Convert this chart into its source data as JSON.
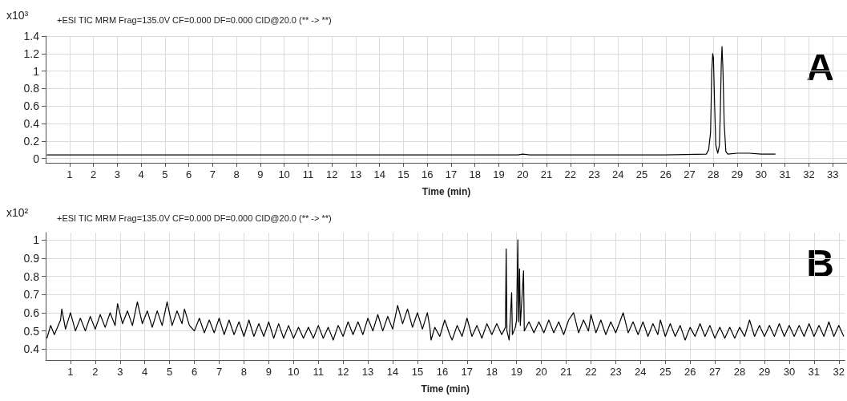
{
  "chart_data": [
    {
      "type": "line",
      "title": "+ESI TIC MRM Frag=135.0V CF=0.000 DF=0.000 CID@20.0 (** -> **)",
      "xlabel": "Time (min)",
      "ylabel": "x10³",
      "annotations": [
        "A"
      ],
      "xlim": [
        0,
        33.6
      ],
      "ylim": [
        -0.05,
        1.4
      ],
      "xticks": [
        1,
        2,
        3,
        4,
        5,
        6,
        7,
        8,
        9,
        10,
        11,
        12,
        13,
        14,
        15,
        16,
        17,
        18,
        19,
        20,
        21,
        22,
        23,
        24,
        25,
        26,
        27,
        28,
        29,
        30,
        31,
        32,
        33
      ],
      "yticks": [
        0,
        0.2,
        0.4,
        0.6,
        0.8,
        1,
        1.2,
        1.4
      ],
      "grid": true,
      "marker": "none",
      "line_style": "solid",
      "series": [
        {
          "color": "#000000",
          "x": [
            0.05,
            5,
            10,
            15,
            17,
            19.8,
            20,
            20.3,
            22,
            26,
            27.7,
            27.8,
            27.88,
            27.93,
            27.97,
            28.0,
            28.05,
            28.1,
            28.18,
            28.25,
            28.29,
            28.33,
            28.36,
            28.4,
            28.45,
            28.52,
            28.6,
            29,
            29.5,
            30,
            30.6
          ],
          "values": [
            0.04,
            0.04,
            0.04,
            0.04,
            0.04,
            0.04,
            0.05,
            0.04,
            0.04,
            0.04,
            0.05,
            0.1,
            0.3,
            1.0,
            1.2,
            1.15,
            0.6,
            0.15,
            0.06,
            0.15,
            0.55,
            1.1,
            1.28,
            1.0,
            0.4,
            0.08,
            0.05,
            0.06,
            0.06,
            0.05,
            0.05
          ]
        }
      ]
    },
    {
      "type": "line",
      "title": "+ESI TIC MRM Frag=135.0V CF=0.000 DF=0.000 CID@20.0 (** -> **)",
      "xlabel": "Time (min)",
      "ylabel": "x10²",
      "annotations": [
        "B"
      ],
      "xlim": [
        0,
        32.25
      ],
      "ylim": [
        0.34,
        1.04
      ],
      "xticks": [
        1,
        2,
        3,
        4,
        5,
        6,
        7,
        8,
        9,
        10,
        11,
        12,
        13,
        14,
        15,
        16,
        17,
        18,
        19,
        20,
        21,
        22,
        23,
        24,
        25,
        26,
        27,
        28,
        29,
        30,
        31,
        32
      ],
      "yticks": [
        0.4,
        0.5,
        0.6,
        0.7,
        0.8,
        0.9,
        1
      ],
      "grid": true,
      "marker": "none",
      "line_style": "solid",
      "series": [
        {
          "color": "#000000",
          "x": [
            0.05,
            0.2,
            0.35,
            0.6,
            0.65,
            0.8,
            1.0,
            1.2,
            1.4,
            1.6,
            1.8,
            2.0,
            2.2,
            2.4,
            2.6,
            2.8,
            2.9,
            3.1,
            3.3,
            3.5,
            3.7,
            3.9,
            4.1,
            4.3,
            4.5,
            4.7,
            4.9,
            5.1,
            5.3,
            5.5,
            5.6,
            5.8,
            6.0,
            6.2,
            6.4,
            6.6,
            6.8,
            7.0,
            7.2,
            7.4,
            7.6,
            7.8,
            8.0,
            8.2,
            8.4,
            8.6,
            8.8,
            9.0,
            9.2,
            9.4,
            9.6,
            9.8,
            10.0,
            10.2,
            10.4,
            10.6,
            10.8,
            11.0,
            11.2,
            11.4,
            11.6,
            11.8,
            12.0,
            12.2,
            12.4,
            12.6,
            12.8,
            13.0,
            13.2,
            13.4,
            13.6,
            13.8,
            14.0,
            14.2,
            14.4,
            14.6,
            14.8,
            15.0,
            15.2,
            15.4,
            15.5,
            15.55,
            15.7,
            15.9,
            16.1,
            16.3,
            16.4,
            16.6,
            16.8,
            17.0,
            17.2,
            17.4,
            17.6,
            17.8,
            18.0,
            18.2,
            18.4,
            18.55,
            18.58,
            18.61,
            18.7,
            18.8,
            18.83,
            18.95,
            19.0,
            19.05,
            19.08,
            19.12,
            19.15,
            19.28,
            19.31,
            19.5,
            19.7,
            19.9,
            20.1,
            20.3,
            20.5,
            20.7,
            20.9,
            21.1,
            21.3,
            21.5,
            21.7,
            21.9,
            22.0,
            22.2,
            22.4,
            22.6,
            22.8,
            23.0,
            23.3,
            23.5,
            23.7,
            23.9,
            24.1,
            24.3,
            24.5,
            24.7,
            24.8,
            25.0,
            25.2,
            25.4,
            25.6,
            25.8,
            26.0,
            26.2,
            26.4,
            26.6,
            26.8,
            27.0,
            27.2,
            27.4,
            27.6,
            27.8,
            28.0,
            28.2,
            28.4,
            28.6,
            28.8,
            29.0,
            29.2,
            29.4,
            29.6,
            29.8,
            30.0,
            30.2,
            30.4,
            30.6,
            30.8,
            31.0,
            31.2,
            31.4,
            31.6,
            31.8,
            32.0,
            32.2
          ],
          "values": [
            0.46,
            0.53,
            0.48,
            0.56,
            0.62,
            0.51,
            0.6,
            0.5,
            0.57,
            0.5,
            0.58,
            0.51,
            0.59,
            0.52,
            0.6,
            0.53,
            0.65,
            0.54,
            0.61,
            0.53,
            0.66,
            0.54,
            0.61,
            0.52,
            0.61,
            0.53,
            0.66,
            0.53,
            0.61,
            0.54,
            0.62,
            0.53,
            0.5,
            0.57,
            0.49,
            0.56,
            0.49,
            0.57,
            0.48,
            0.56,
            0.48,
            0.55,
            0.47,
            0.56,
            0.47,
            0.54,
            0.47,
            0.55,
            0.46,
            0.54,
            0.46,
            0.53,
            0.46,
            0.52,
            0.46,
            0.52,
            0.46,
            0.53,
            0.46,
            0.52,
            0.45,
            0.53,
            0.47,
            0.55,
            0.48,
            0.55,
            0.48,
            0.57,
            0.5,
            0.59,
            0.5,
            0.58,
            0.51,
            0.64,
            0.54,
            0.62,
            0.52,
            0.6,
            0.51,
            0.6,
            0.52,
            0.45,
            0.52,
            0.47,
            0.56,
            0.48,
            0.45,
            0.53,
            0.47,
            0.57,
            0.47,
            0.53,
            0.46,
            0.54,
            0.48,
            0.54,
            0.48,
            0.52,
            0.95,
            0.5,
            0.45,
            0.71,
            0.48,
            0.52,
            0.56,
            1.0,
            0.55,
            0.84,
            0.53,
            0.83,
            0.5,
            0.55,
            0.49,
            0.55,
            0.49,
            0.56,
            0.49,
            0.55,
            0.48,
            0.56,
            0.6,
            0.49,
            0.56,
            0.5,
            0.59,
            0.49,
            0.56,
            0.48,
            0.55,
            0.49,
            0.6,
            0.49,
            0.55,
            0.48,
            0.55,
            0.47,
            0.54,
            0.48,
            0.56,
            0.47,
            0.54,
            0.47,
            0.53,
            0.45,
            0.52,
            0.47,
            0.54,
            0.47,
            0.53,
            0.46,
            0.52,
            0.46,
            0.52,
            0.46,
            0.52,
            0.47,
            0.56,
            0.47,
            0.53,
            0.47,
            0.53,
            0.47,
            0.54,
            0.47,
            0.53,
            0.47,
            0.53,
            0.47,
            0.54,
            0.47,
            0.53,
            0.47,
            0.55,
            0.47,
            0.53,
            0.47
          ]
        }
      ]
    }
  ]
}
